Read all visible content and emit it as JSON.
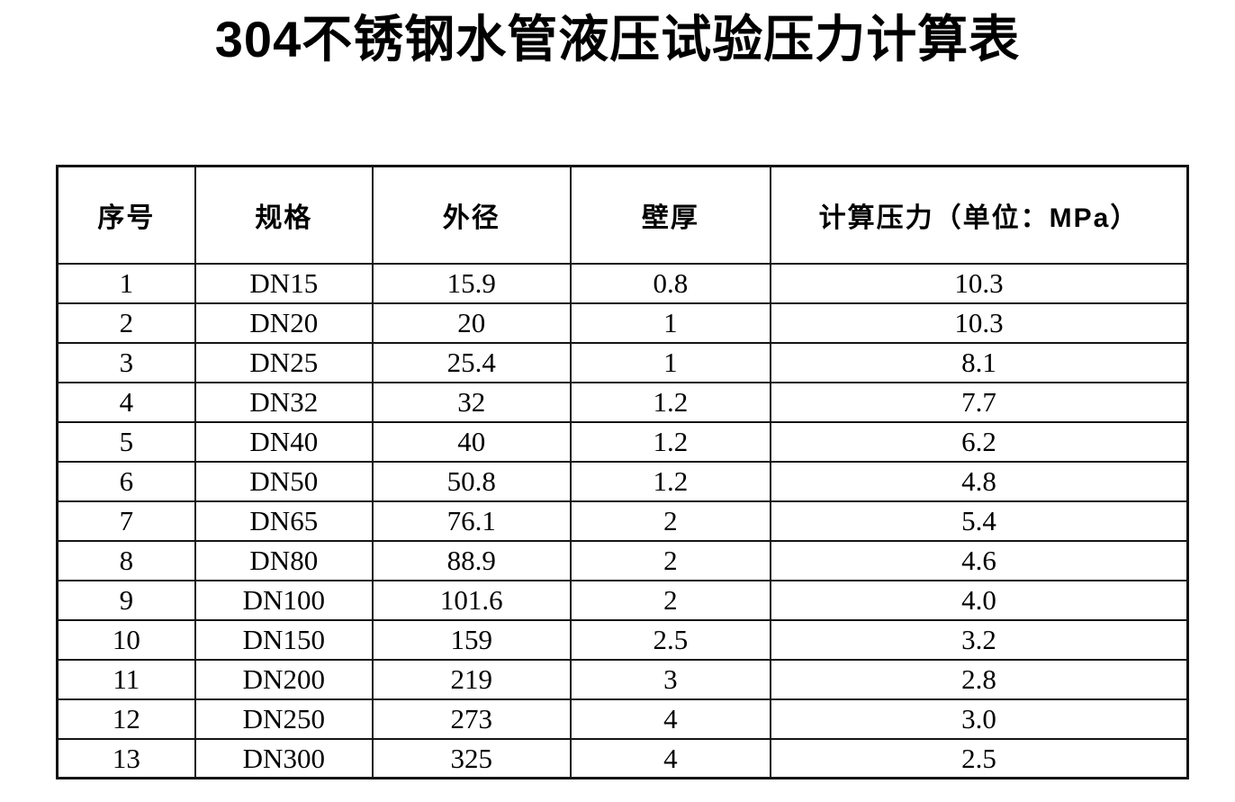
{
  "document": {
    "title": "304不锈钢水管液压试验压力计算表"
  },
  "table": {
    "columns": [
      {
        "key": "seq",
        "label": "序号"
      },
      {
        "key": "spec",
        "label": "规格"
      },
      {
        "key": "od",
        "label": "外径"
      },
      {
        "key": "wall",
        "label": "壁厚"
      },
      {
        "key": "pressure",
        "label": "计算压力（单位：MPa）"
      }
    ],
    "rows": [
      {
        "seq": "1",
        "spec": "DN15",
        "od": "15.9",
        "wall": "0.8",
        "pressure": "10.3"
      },
      {
        "seq": "2",
        "spec": "DN20",
        "od": "20",
        "wall": "1",
        "pressure": "10.3"
      },
      {
        "seq": "3",
        "spec": "DN25",
        "od": "25.4",
        "wall": "1",
        "pressure": "8.1"
      },
      {
        "seq": "4",
        "spec": "DN32",
        "od": "32",
        "wall": "1.2",
        "pressure": "7.7"
      },
      {
        "seq": "5",
        "spec": "DN40",
        "od": "40",
        "wall": "1.2",
        "pressure": "6.2"
      },
      {
        "seq": "6",
        "spec": "DN50",
        "od": "50.8",
        "wall": "1.2",
        "pressure": "4.8"
      },
      {
        "seq": "7",
        "spec": "DN65",
        "od": "76.1",
        "wall": "2",
        "pressure": "5.4"
      },
      {
        "seq": "8",
        "spec": "DN80",
        "od": "88.9",
        "wall": "2",
        "pressure": "4.6"
      },
      {
        "seq": "9",
        "spec": "DN100",
        "od": "101.6",
        "wall": "2",
        "pressure": "4.0"
      },
      {
        "seq": "10",
        "spec": "DN150",
        "od": "159",
        "wall": "2.5",
        "pressure": "3.2"
      },
      {
        "seq": "11",
        "spec": "DN200",
        "od": "219",
        "wall": "3",
        "pressure": "2.8"
      },
      {
        "seq": "12",
        "spec": "DN250",
        "od": "273",
        "wall": "4",
        "pressure": "3.0"
      },
      {
        "seq": "13",
        "spec": "DN300",
        "od": "325",
        "wall": "4",
        "pressure": "2.5"
      }
    ],
    "colors": {
      "border": "#141414",
      "text": "#000000",
      "background": "#ffffff"
    }
  }
}
